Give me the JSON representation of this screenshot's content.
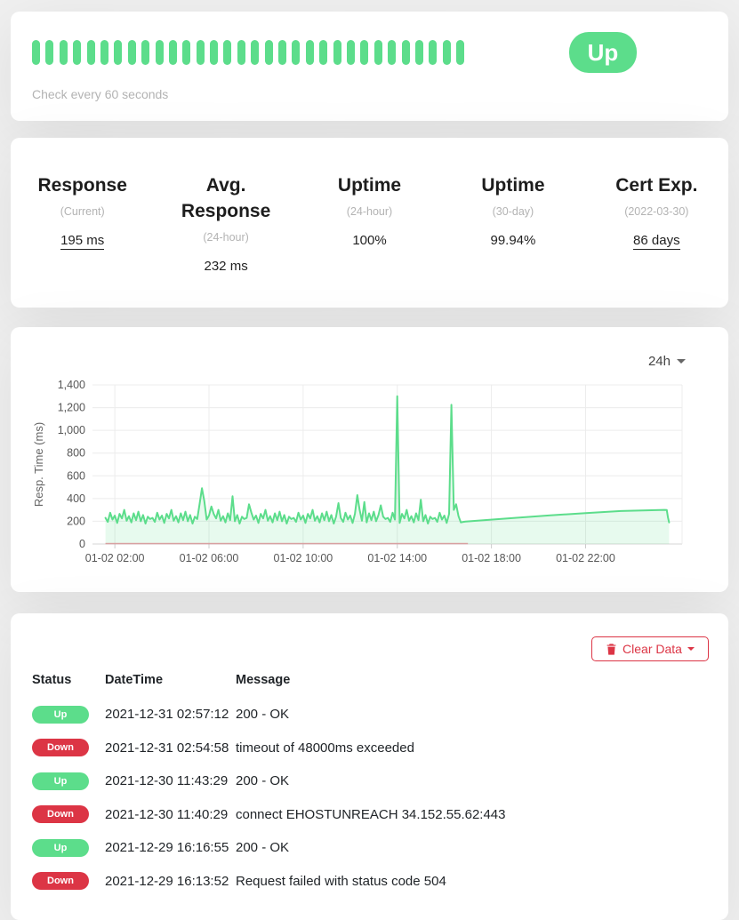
{
  "colors": {
    "up_green": "#5cdd8b",
    "down_red": "#dc3545"
  },
  "monitor": {
    "status_badge": "Up",
    "check_interval_text": "Check every 60 seconds",
    "heartbeat": {
      "count": 32,
      "all_status": "up"
    }
  },
  "stats": [
    {
      "title": "Response",
      "subtitle": "(Current)",
      "value": "195 ms",
      "underline": true
    },
    {
      "title": "Avg. Response",
      "subtitle": "(24-hour)",
      "value": "232 ms",
      "underline": false
    },
    {
      "title": "Uptime",
      "subtitle": "(24-hour)",
      "value": "100%",
      "underline": false
    },
    {
      "title": "Uptime",
      "subtitle": "(30-day)",
      "value": "99.94%",
      "underline": false
    },
    {
      "title": "Cert Exp.",
      "subtitle": "(2022-03-30)",
      "value": "86 days",
      "underline": true
    }
  ],
  "chart_card": {
    "period": "24h"
  },
  "chart_data": {
    "type": "area",
    "title": "",
    "xlabel": "",
    "ylabel": "Resp. Time (ms)",
    "ylim": [
      0,
      1400
    ],
    "grid": true,
    "legend": "none",
    "line_color": "#5cdd8b",
    "fill_color": "rgba(92,221,139,0.15)",
    "y_ticks": [
      {
        "v": 0,
        "label": "0"
      },
      {
        "v": 200,
        "label": "200"
      },
      {
        "v": 400,
        "label": "400"
      },
      {
        "v": 600,
        "label": "600"
      },
      {
        "v": 800,
        "label": "800"
      },
      {
        "v": 1000,
        "label": "1,000"
      },
      {
        "v": 1200,
        "label": "1,200"
      },
      {
        "v": 1400,
        "label": "1,400"
      }
    ],
    "x_range_hours": [
      1.05,
      26.1
    ],
    "x_ticks": [
      {
        "hour": 2,
        "label": "01-02 02:00"
      },
      {
        "hour": 6,
        "label": "01-02 06:00"
      },
      {
        "hour": 10,
        "label": "01-02 10:00"
      },
      {
        "hour": 14,
        "label": "01-02 14:00"
      },
      {
        "hour": 18,
        "label": "01-02 18:00"
      },
      {
        "hour": 22,
        "label": "01-02 22:00"
      }
    ],
    "down_baseline": {
      "from_hour": 1.6,
      "to_hour": 17.0,
      "color": "rgba(220,53,69,0.4)"
    },
    "series": [
      {
        "name": "Resp. Time (ms)",
        "segments": [
          {
            "start_hour": 1.6,
            "step_hours": 0.1,
            "values": [
              230,
              195,
              275,
              215,
              250,
              185,
              265,
              225,
              300,
              205,
              245,
              190,
              270,
              210,
              285,
              200,
              255,
              180,
              240,
              220,
              230,
              195,
              275,
              215,
              250,
              185,
              265,
              225,
              300,
              205,
              245,
              190,
              270,
              210,
              285,
              200,
              255,
              180,
              240,
              220,
              350,
              490,
              380,
              215,
              250,
              330,
              265,
              225,
              300,
              205,
              245,
              190,
              270,
              210,
              420,
              200,
              255,
              180,
              240,
              220,
              230,
              350,
              275,
              215,
              250,
              185,
              265,
              225,
              300,
              205,
              245,
              190,
              270,
              210,
              285,
              200,
              255,
              180,
              240,
              220,
              230,
              195,
              275,
              215,
              250,
              185,
              265,
              225,
              300,
              205,
              245,
              190,
              270,
              210,
              285,
              200,
              255,
              180,
              240,
              360,
              230,
              195,
              275,
              215,
              250,
              185,
              265,
              430,
              300,
              205,
              370,
              190,
              270,
              210,
              285,
              200,
              255,
              340,
              240,
              220,
              230,
              195,
              275,
              215,
              1300,
              185,
              265,
              225,
              300,
              205,
              245,
              190,
              270,
              210,
              390,
              200,
              255,
              180,
              240,
              220,
              230,
              195,
              275,
              215,
              250,
              185,
              265,
              1225,
              300,
              350,
              245,
              190,
              195
            ]
          },
          {
            "points": [
              [
                16.9,
                197
              ],
              [
                17.6,
                208
              ],
              [
                19.0,
                230
              ],
              [
                20.5,
                252
              ],
              [
                22.0,
                272
              ],
              [
                23.5,
                290
              ],
              [
                24.8,
                297
              ],
              [
                25.35,
                300
              ],
              [
                25.45,
                299
              ],
              [
                25.5,
                235
              ],
              [
                25.55,
                190
              ]
            ]
          }
        ]
      }
    ]
  },
  "events": {
    "clear_button": {
      "label": "Clear Data"
    },
    "columns": [
      "Status",
      "DateTime",
      "Message"
    ],
    "rows": [
      {
        "status": "Up",
        "datetime": "2021-12-31 02:57:12",
        "message": "200 - OK"
      },
      {
        "status": "Down",
        "datetime": "2021-12-31 02:54:58",
        "message": "timeout of 48000ms exceeded"
      },
      {
        "status": "Up",
        "datetime": "2021-12-30 11:43:29",
        "message": "200 - OK"
      },
      {
        "status": "Down",
        "datetime": "2021-12-30 11:40:29",
        "message": "connect EHOSTUNREACH 34.152.55.62:443"
      },
      {
        "status": "Up",
        "datetime": "2021-12-29 16:16:55",
        "message": "200 - OK"
      },
      {
        "status": "Down",
        "datetime": "2021-12-29 16:13:52",
        "message": "Request failed with status code 504"
      }
    ]
  }
}
